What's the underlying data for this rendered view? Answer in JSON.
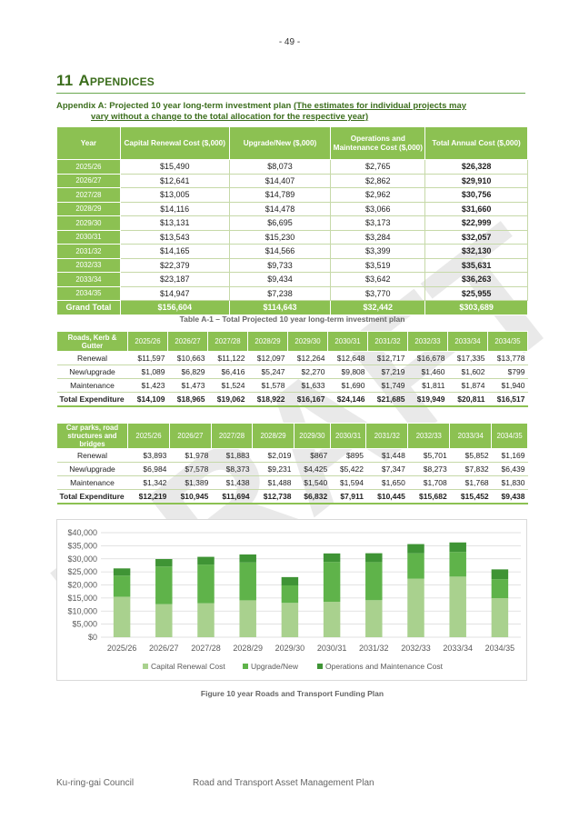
{
  "page": {
    "number": "- 49 -",
    "watermark": "DRAFT"
  },
  "section": {
    "number": "11",
    "title": "Appendices"
  },
  "appendix": {
    "prefix": "Appendix A: Projected 10 year long-term investment plan",
    "note_line1": "(The estimates for individual projects may",
    "note_line2": "vary without a change to the total allocation for the respective year)"
  },
  "summary_table": {
    "headers": [
      "Year",
      "Capital Renewal Cost ($,000)",
      "Upgrade/New ($,000)",
      "Operations and Maintenance Cost ($,000)",
      "Total Annual Cost ($,000)"
    ],
    "rows": [
      [
        "2025/26",
        "$15,490",
        "$8,073",
        "$2,765",
        "$26,328"
      ],
      [
        "2026/27",
        "$12,641",
        "$14,407",
        "$2,862",
        "$29,910"
      ],
      [
        "2027/28",
        "$13,005",
        "$14,789",
        "$2,962",
        "$30,756"
      ],
      [
        "2028/29",
        "$14,116",
        "$14,478",
        "$3,066",
        "$31,660"
      ],
      [
        "2029/30",
        "$13,131",
        "$6,695",
        "$3,173",
        "$22,999"
      ],
      [
        "2030/31",
        "$13,543",
        "$15,230",
        "$3,284",
        "$32,057"
      ],
      [
        "2031/32",
        "$14,165",
        "$14,566",
        "$3,399",
        "$32,130"
      ],
      [
        "2032/33",
        "$22,379",
        "$9,733",
        "$3,519",
        "$35,631"
      ],
      [
        "2033/34",
        "$23,187",
        "$9,434",
        "$3,642",
        "$36,263"
      ],
      [
        "2034/35",
        "$14,947",
        "$7,238",
        "$3,770",
        "$25,955"
      ]
    ],
    "grand_total": [
      "Grand Total",
      "$156,604",
      "$114,643",
      "$32,442",
      "$303,689"
    ],
    "caption": "Table A-1 – Total Projected 10 year long-term investment plan"
  },
  "roads_table": {
    "label": "Roads, Kerb & Gutter",
    "years": [
      "2025/26",
      "2026/27",
      "2027/28",
      "2028/29",
      "2029/30",
      "2030/31",
      "2031/32",
      "2032/33",
      "2033/34",
      "2034/35"
    ],
    "rows": [
      {
        "label": "Renewal",
        "values": [
          "$11,597",
          "$10,663",
          "$11,122",
          "$12,097",
          "$12,264",
          "$12,648",
          "$12,717",
          "$16,678",
          "$17,335",
          "$13,778"
        ]
      },
      {
        "label": "New/upgrade",
        "values": [
          "$1,089",
          "$6,829",
          "$6,416",
          "$5,247",
          "$2,270",
          "$9,808",
          "$7,219",
          "$1,460",
          "$1,602",
          "$799"
        ]
      },
      {
        "label": "Maintenance",
        "values": [
          "$1,423",
          "$1,473",
          "$1,524",
          "$1,578",
          "$1,633",
          "$1,690",
          "$1,749",
          "$1,811",
          "$1,874",
          "$1,940"
        ]
      },
      {
        "label": "Total Expenditure",
        "values": [
          "$14,109",
          "$18,965",
          "$19,062",
          "$18,922",
          "$16,167",
          "$24,146",
          "$21,685",
          "$19,949",
          "$20,811",
          "$16,517"
        ]
      }
    ]
  },
  "carparks_table": {
    "label": "Car parks, road structures and bridges",
    "years": [
      "2025/26",
      "2026/27",
      "2027/28",
      "2028/29",
      "2029/30",
      "2030/31",
      "2031/32",
      "2032/33",
      "2033/34",
      "2034/35"
    ],
    "rows": [
      {
        "label": "Renewal",
        "values": [
          "$3,893",
          "$1,978",
          "$1,883",
          "$2,019",
          "$867",
          "$895",
          "$1,448",
          "$5,701",
          "$5,852",
          "$1,169"
        ]
      },
      {
        "label": "New/upgrade",
        "values": [
          "$6,984",
          "$7,578",
          "$8,373",
          "$9,231",
          "$4,425",
          "$5,422",
          "$7,347",
          "$8,273",
          "$7,832",
          "$6,439"
        ]
      },
      {
        "label": "Maintenance",
        "values": [
          "$1,342",
          "$1,389",
          "$1,438",
          "$1,488",
          "$1,540",
          "$1,594",
          "$1,650",
          "$1,708",
          "$1,768",
          "$1,830"
        ]
      },
      {
        "label": "Total Expenditure",
        "values": [
          "$12,219",
          "$10,945",
          "$11,694",
          "$12,738",
          "$6,832",
          "$7,911",
          "$10,445",
          "$15,682",
          "$15,452",
          "$9,438"
        ]
      }
    ]
  },
  "chart_data": {
    "type": "bar",
    "stacked": true,
    "categories": [
      "2025/26",
      "2026/27",
      "2027/28",
      "2028/29",
      "2029/30",
      "2030/31",
      "2031/32",
      "2032/33",
      "2033/34",
      "2034/35"
    ],
    "series": [
      {
        "name": "Capital Renewal Cost",
        "color": "#a9d18e",
        "values": [
          15490,
          12641,
          13005,
          14116,
          13131,
          13543,
          14165,
          22379,
          23187,
          14947
        ]
      },
      {
        "name": "Upgrade/New",
        "color": "#5fb34a",
        "values": [
          8073,
          14407,
          14789,
          14478,
          6695,
          15230,
          14566,
          9733,
          9434,
          7238
        ]
      },
      {
        "name": "Operations and Maintenance Cost",
        "color": "#3f9435",
        "values": [
          2765,
          2862,
          2962,
          3066,
          3173,
          3284,
          3399,
          3519,
          3642,
          3770
        ]
      }
    ],
    "yticks": [
      "$0",
      "$5,000",
      "$10,000",
      "$15,000",
      "$20,000",
      "$25,000",
      "$30,000",
      "$35,000",
      "$40,000"
    ],
    "ylim": [
      0,
      40000
    ],
    "grid": true,
    "legend": "bottom",
    "caption": "Figure 10 year Roads and Transport Funding Plan"
  },
  "footer": {
    "org": "Ku-ring-gai Council",
    "doc": "Road and Transport Asset Management Plan"
  }
}
